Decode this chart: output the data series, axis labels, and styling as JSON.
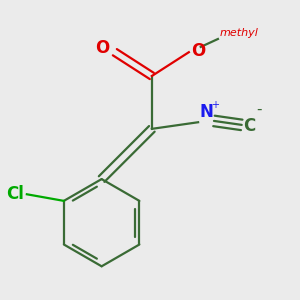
{
  "background_color": "#ebebeb",
  "bond_color": "#3a6b35",
  "bond_width": 1.6,
  "dbo": 0.032,
  "atom_colors": {
    "O": "#e00000",
    "N": "#1a1aee",
    "Cl": "#00aa00",
    "C": "#3a6b35"
  },
  "font_size_atom": 11,
  "font_size_methyl": 9,
  "font_size_superscript": 7
}
